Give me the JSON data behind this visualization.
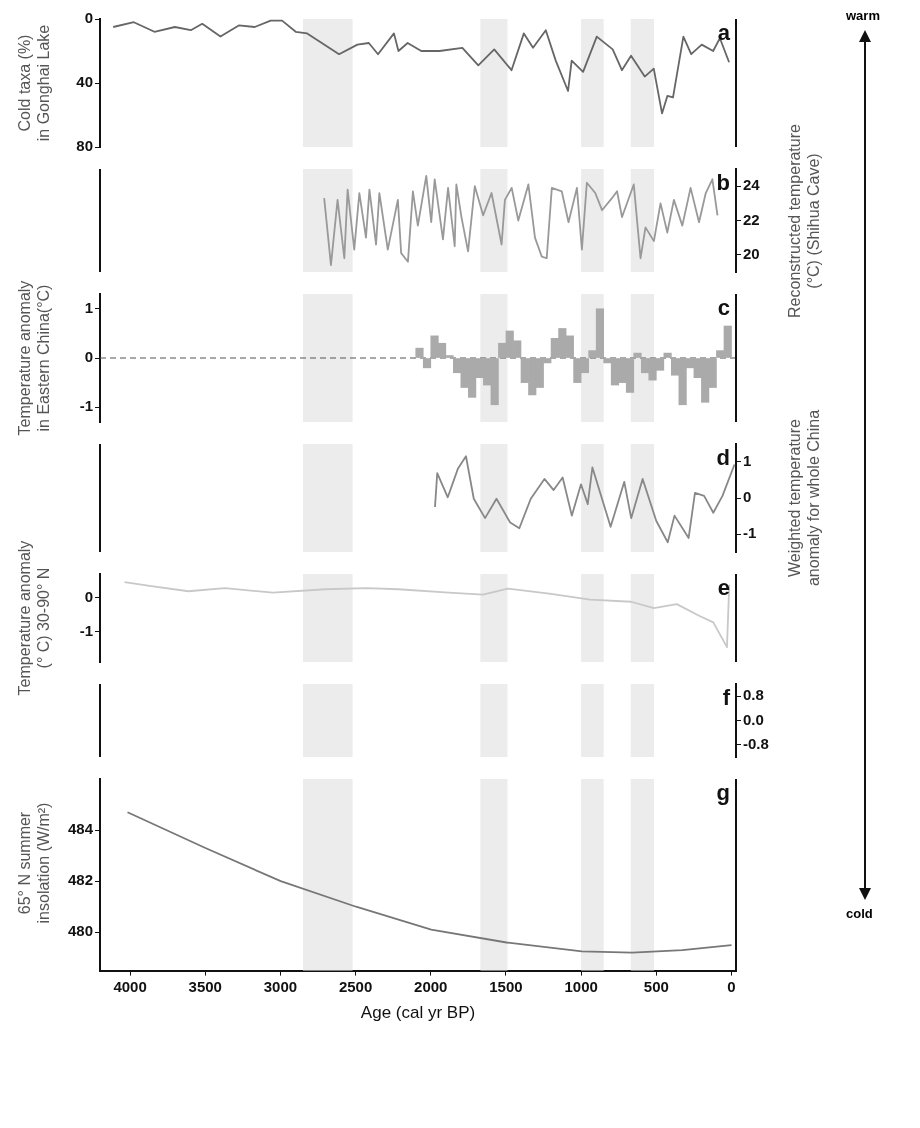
{
  "chart_data": [
    {
      "type": "line",
      "ylabel": "Cold taxa (%) in Gonghai Lake",
      "xlim": [
        4200,
        -30
      ],
      "ylim": [
        80,
        0
      ],
      "yticks": [
        0,
        40,
        80
      ],
      "tick_labels": "y",
      "annotations": [
        "a",
        "warm"
      ],
      "bands": [
        {
          "axis": "x",
          "from": 2850,
          "to": 2520,
          "color": "#ececec"
        },
        {
          "axis": "x",
          "from": 1670,
          "to": 1490,
          "color": "#ececec"
        },
        {
          "axis": "x",
          "from": 1000,
          "to": 850,
          "color": "#ececec"
        },
        {
          "axis": "x",
          "from": 670,
          "to": 515,
          "color": "#ececec"
        }
      ],
      "x": [
        4112,
        3975,
        3838,
        3702,
        3596,
        3520,
        3399,
        3277,
        3171,
        3065,
        2989,
        2898,
        2822,
        2610,
        2488,
        2412,
        2351,
        2245,
        2215,
        2154,
        2063,
        1942,
        1790,
        1684,
        1578,
        1463,
        1381,
        1320,
        1235,
        1169,
        1087,
        1063,
        987,
        896,
        790,
        729,
        668,
        577,
        517,
        462,
        426,
        389,
        320,
        268,
        198,
        122,
        77,
        16
      ],
      "series": [
        {
          "color": "#666666",
          "values": [
            5,
            2,
            8,
            5,
            7,
            3,
            11,
            4,
            5,
            1,
            1,
            8,
            9,
            22,
            16,
            15,
            22,
            9,
            20,
            15,
            20,
            20,
            18,
            29,
            19,
            32,
            9,
            18,
            7,
            26,
            45,
            26,
            33,
            11,
            19,
            32,
            23,
            36,
            31,
            59,
            48,
            49,
            11,
            22,
            16,
            20,
            12,
            27
          ]
        }
      ]
    },
    {
      "type": "line",
      "y2label": "Reconstructed temperature (°C) (Shihua Cave)",
      "xlim": [
        4200,
        -30
      ],
      "y2lim": [
        19,
        25
      ],
      "y2ticks": [
        20,
        22,
        24
      ],
      "tick_labels": "y",
      "annotations": [
        "b"
      ],
      "bands": [
        {
          "axis": "x",
          "from": 2850,
          "to": 2520,
          "color": "#ececec"
        },
        {
          "axis": "x",
          "from": 1670,
          "to": 1490,
          "color": "#ececec"
        },
        {
          "axis": "x",
          "from": 1000,
          "to": 850,
          "color": "#ececec"
        },
        {
          "axis": "x",
          "from": 670,
          "to": 515,
          "color": "#ececec"
        }
      ],
      "x": [
        2709,
        2664,
        2620,
        2575,
        2553,
        2509,
        2475,
        2431,
        2408,
        2364,
        2342,
        2286,
        2219,
        2197,
        2152,
        2119,
        2086,
        2030,
        1997,
        1974,
        1919,
        1885,
        1841,
        1830,
        1796,
        1752,
        1707,
        1652,
        1596,
        1529,
        1507,
        1462,
        1418,
        1351,
        1307,
        1262,
        1229,
        1195,
        1129,
        1084,
        1028,
        995,
        962,
        906,
        861,
        795,
        761,
        728,
        650,
        605,
        572,
        516,
        472,
        427,
        383,
        327,
        272,
        216,
        171,
        127,
        93
      ],
      "series": [
        {
          "color": "#999999",
          "axis": "y2",
          "values": [
            23.3,
            19.4,
            23.2,
            19.8,
            23.8,
            20.3,
            23.6,
            21.0,
            23.8,
            20.6,
            23.6,
            20.3,
            23.2,
            20.1,
            19.6,
            23.7,
            21.7,
            24.6,
            21.9,
            24.4,
            20.9,
            23.9,
            20.5,
            24.1,
            22.2,
            20.2,
            24.0,
            22.3,
            23.6,
            20.6,
            23.2,
            23.9,
            22.0,
            24.1,
            21.0,
            19.9,
            19.8,
            23.9,
            23.7,
            21.9,
            23.9,
            20.3,
            24.2,
            23.6,
            22.6,
            23.3,
            23.7,
            22.2,
            24.1,
            19.8,
            21.6,
            20.8,
            23.0,
            21.3,
            23.2,
            21.7,
            23.9,
            21.9,
            23.6,
            24.4,
            22.3
          ]
        }
      ]
    },
    {
      "type": "bar",
      "ylabel": "Temperature anomaly in Eastern China(°C)",
      "xlim": [
        4200,
        -30
      ],
      "ylim": [
        -1.3,
        1.3
      ],
      "yticks": [
        -1,
        0,
        1
      ],
      "tick_labels": "y",
      "annotations": [
        "c"
      ],
      "bands": [
        {
          "axis": "x",
          "from": 2850,
          "to": 2520,
          "color": "#ececec"
        },
        {
          "axis": "x",
          "from": 1670,
          "to": 1490,
          "color": "#ececec"
        },
        {
          "axis": "x",
          "from": 1000,
          "to": 850,
          "color": "#ececec"
        },
        {
          "axis": "x",
          "from": 670,
          "to": 515,
          "color": "#ececec"
        }
      ],
      "ref_lines": [
        {
          "axis": "y",
          "value": 0,
          "color": "#555555",
          "line_style": "dashed"
        }
      ],
      "x": [
        2075,
        2025,
        1975,
        1925,
        1875,
        1825,
        1775,
        1725,
        1675,
        1625,
        1575,
        1525,
        1475,
        1425,
        1375,
        1325,
        1275,
        1225,
        1175,
        1125,
        1075,
        1025,
        975,
        925,
        875,
        825,
        775,
        725,
        675,
        625,
        575,
        525,
        475,
        425,
        375,
        325,
        275,
        225,
        175,
        125,
        75,
        25
      ],
      "series": [
        {
          "color": "#aaaaaa",
          "values": [
            0.2,
            -0.2,
            0.45,
            0.3,
            0.05,
            -0.3,
            -0.6,
            -0.8,
            -0.4,
            -0.55,
            -0.95,
            0.3,
            0.55,
            0.35,
            -0.5,
            -0.75,
            -0.6,
            -0.1,
            0.4,
            0.6,
            0.45,
            -0.5,
            -0.3,
            0.15,
            1.0,
            -0.1,
            -0.55,
            -0.5,
            -0.7,
            0.1,
            -0.3,
            -0.45,
            -0.25,
            0.1,
            -0.35,
            -0.95,
            -0.2,
            -0.4,
            -0.9,
            -0.6,
            0.15,
            0.65
          ]
        }
      ]
    },
    {
      "type": "line",
      "y2label": "Weighted temperature anomaly for whole China",
      "xlim": [
        4200,
        -30
      ],
      "y2lim": [
        -1.5,
        1.5
      ],
      "y2ticks": [
        -1,
        0,
        1
      ],
      "tick_labels": "y",
      "annotations": [
        "d"
      ],
      "bands": [
        {
          "axis": "x",
          "from": 2850,
          "to": 2520,
          "color": "#ececec"
        },
        {
          "axis": "x",
          "from": 1670,
          "to": 1490,
          "color": "#ececec"
        },
        {
          "axis": "x",
          "from": 1000,
          "to": 850,
          "color": "#ececec"
        },
        {
          "axis": "x",
          "from": 670,
          "to": 515,
          "color": "#ececec"
        }
      ],
      "x": [
        1972,
        1957,
        1887,
        1820,
        1766,
        1714,
        1639,
        1563,
        1472,
        1411,
        1335,
        1244,
        1183,
        1123,
        1062,
        1001,
        956,
        925,
        804,
        713,
        667,
        591,
        500,
        424,
        379,
        285,
        243,
        182,
        121,
        60,
        -20
      ],
      "series": [
        {
          "color": "#888888",
          "axis": "y2",
          "values": [
            -0.25,
            0.69,
            0.02,
            0.81,
            1.16,
            -0.02,
            -0.56,
            -0.02,
            -0.68,
            -0.84,
            -0.02,
            0.53,
            0.22,
            0.57,
            -0.49,
            0.38,
            -0.17,
            0.85,
            -0.8,
            0.45,
            -0.56,
            0.53,
            -0.64,
            -1.23,
            -0.49,
            -1.11,
            0.14,
            0.06,
            -0.41,
            0.06,
            0.93
          ]
        }
      ]
    },
    {
      "type": "line",
      "ylabel": "Temperature anomaly (° C) 30-90° N",
      "xlim": [
        4200,
        -30
      ],
      "ylim": [
        -1.9,
        0.7
      ],
      "yticks": [
        -1,
        0
      ],
      "tick_labels": "y",
      "annotations": [
        "e"
      ],
      "bands": [
        {
          "axis": "x",
          "from": 2850,
          "to": 2520,
          "color": "#ececec"
        },
        {
          "axis": "x",
          "from": 1670,
          "to": 1490,
          "color": "#ececec"
        },
        {
          "axis": "x",
          "from": 1000,
          "to": 850,
          "color": "#ececec"
        },
        {
          "axis": "x",
          "from": 670,
          "to": 515,
          "color": "#ececec"
        }
      ],
      "x": [
        4037,
        3870,
        3612,
        3369,
        3050,
        2701,
        2427,
        2215,
        1881,
        1653,
        1487,
        1213,
        940,
        668,
        516,
        364,
        212,
        121,
        30,
        15
      ],
      "series": [
        {
          "color": "#c8c8c8",
          "values": [
            0.46,
            0.35,
            0.19,
            0.28,
            0.15,
            0.25,
            0.28,
            0.25,
            0.15,
            0.09,
            0.27,
            0.12,
            -0.06,
            -0.12,
            -0.31,
            -0.19,
            -0.54,
            -0.73,
            -1.46,
            0.38
          ]
        }
      ]
    },
    {
      "type": "line",
      "xlim": [
        4200,
        -30
      ],
      "y2lim": [
        -1.2,
        1.2
      ],
      "y2ticks": [
        0.8,
        {
          "value": 0,
          "label": "0.0"
        },
        -0.8
      ],
      "tick_labels": "y",
      "annotations": [
        "f"
      ],
      "bands": [
        {
          "axis": "x",
          "from": 2850,
          "to": 2520,
          "color": "#ececec"
        },
        {
          "axis": "x",
          "from": 1670,
          "to": 1490,
          "color": "#ececec"
        },
        {
          "axis": "x",
          "from": 1000,
          "to": 850,
          "color": "#ececec"
        },
        {
          "axis": "x",
          "from": 670,
          "to": 515,
          "color": "#ececec"
        }
      ]
    },
    {
      "type": "line",
      "ylabel": "65° N summer insolation (W/m²)",
      "xlabel": "Age (cal yr BP)",
      "xlim": [
        4200,
        -30
      ],
      "xticks": [
        4000,
        3500,
        3000,
        2500,
        2000,
        1500,
        1000,
        500,
        0
      ],
      "ylim": [
        478.5,
        486
      ],
      "yticks": [
        480,
        482,
        484
      ],
      "annotations": [
        "g",
        "cold"
      ],
      "bands": [
        {
          "axis": "x",
          "from": 2850,
          "to": 2520,
          "color": "#ececec"
        },
        {
          "axis": "x",
          "from": 1670,
          "to": 1490,
          "color": "#ececec"
        },
        {
          "axis": "x",
          "from": 1000,
          "to": 850,
          "color": "#ececec"
        },
        {
          "axis": "x",
          "from": 670,
          "to": 515,
          "color": "#ececec"
        }
      ],
      "x": [
        4017,
        3499,
        2998,
        2497,
        1997,
        1496,
        995,
        661,
        327,
        0
      ],
      "series": [
        {
          "color": "#777777",
          "values": [
            484.7,
            483.3,
            482.0,
            481.0,
            480.1,
            479.6,
            479.25,
            479.2,
            479.3,
            479.5
          ]
        }
      ]
    }
  ]
}
